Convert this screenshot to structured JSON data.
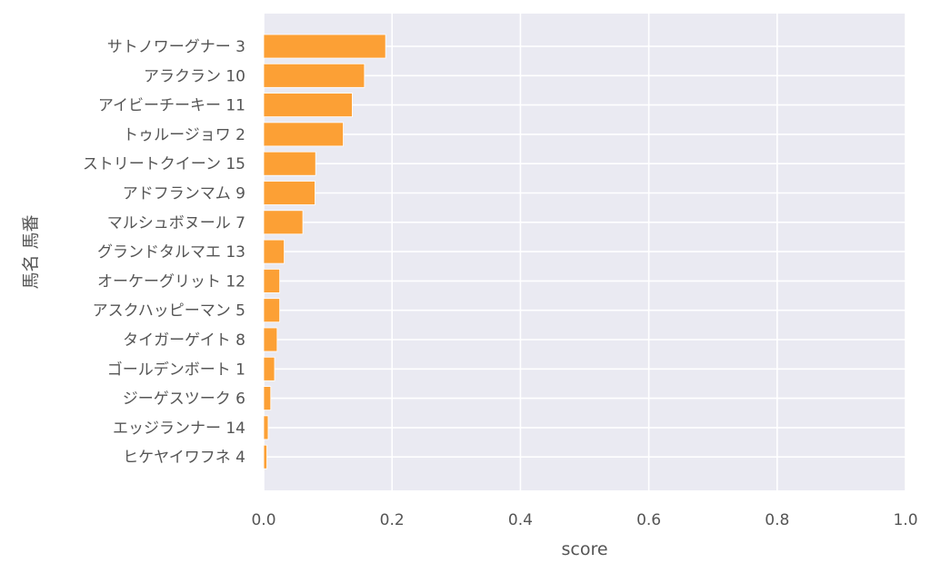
{
  "chart_data": {
    "type": "bar",
    "orientation": "horizontal",
    "xlabel": "score",
    "ylabel": "馬名 馬番",
    "xlim": [
      0,
      1
    ],
    "xticks": [
      "0.0",
      "0.2",
      "0.4",
      "0.6",
      "0.8",
      "1.0"
    ],
    "grid": true,
    "bar_color": "#fca035",
    "background_color": "#eaeaf2",
    "categories": [
      "サトノワーグナー 3",
      "アラクラン 10",
      "アイビーチーキー 11",
      "トゥルージョワ 2",
      "ストリートクイーン 15",
      "アドフランマム 9",
      "マルシュボヌール 7",
      "グランドタルマエ 13",
      "オーケーグリット 12",
      "アスクハッピーマン 5",
      "タイガーゲイト 8",
      "ゴールデンボート 1",
      "ジーゲスツーク 6",
      "エッジランナー 14",
      "ヒケヤイワフネ 4"
    ],
    "values": [
      0.19,
      0.157,
      0.138,
      0.124,
      0.081,
      0.08,
      0.061,
      0.032,
      0.025,
      0.025,
      0.021,
      0.017,
      0.011,
      0.007,
      0.005
    ]
  }
}
